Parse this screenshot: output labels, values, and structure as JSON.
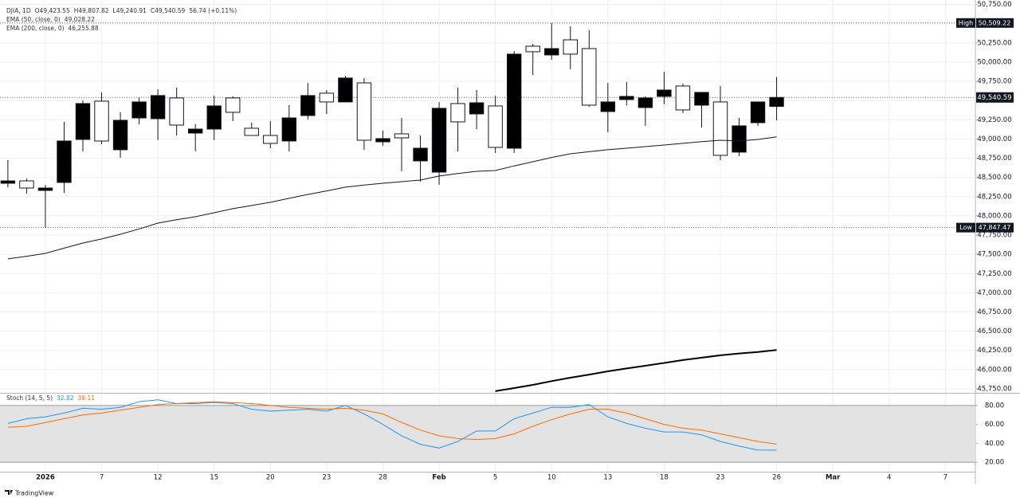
{
  "brand": "TradingView",
  "chart_data": [
    {
      "type": "candlestick",
      "header": {
        "symbol": "DJIA, 1D",
        "ohlc_labels": [
          "O49,423.55",
          "H49,807.82",
          "L49,240.91",
          "C49,540.59"
        ],
        "change": "56.74 (+0.11%)"
      },
      "up_color": "#000000",
      "down_color": "#ffffff",
      "xlim": [
        -0.42,
        51.6
      ],
      "xticks": [
        {
          "value": 2,
          "label": "2026"
        },
        {
          "value": 5,
          "label": "7"
        },
        {
          "value": 8,
          "label": "12"
        },
        {
          "value": 11,
          "label": "15"
        },
        {
          "value": 14,
          "label": "20"
        },
        {
          "value": 17,
          "label": "23"
        },
        {
          "value": 20,
          "label": "28"
        },
        {
          "value": 23,
          "label": "Feb"
        },
        {
          "value": 26,
          "label": "5"
        },
        {
          "value": 29,
          "label": "10"
        },
        {
          "value": 32,
          "label": "13"
        },
        {
          "value": 35,
          "label": "18"
        },
        {
          "value": 38,
          "label": "23"
        },
        {
          "value": 41,
          "label": "26"
        },
        {
          "value": 44,
          "label": "Mar"
        },
        {
          "value": 47,
          "label": "4"
        },
        {
          "value": 50,
          "label": "7"
        }
      ],
      "ylim": [
        45698,
        50808
      ],
      "yticks": [
        {
          "value": 45750,
          "label": "45,750.00"
        },
        {
          "value": 46000,
          "label": "46,000.00"
        },
        {
          "value": 46250,
          "label": "46,250.00"
        },
        {
          "value": 46500,
          "label": "46,500.00"
        },
        {
          "value": 46750,
          "label": "46,750.00"
        },
        {
          "value": 47000,
          "label": "47,000.00"
        },
        {
          "value": 47250,
          "label": "47,250.00"
        },
        {
          "value": 47500,
          "label": "47,500.00"
        },
        {
          "value": 47750,
          "label": "47,750.00"
        },
        {
          "value": 48000,
          "label": "48,000.00"
        },
        {
          "value": 48250,
          "label": "48,250.00"
        },
        {
          "value": 48500,
          "label": "48,500.00"
        },
        {
          "value": 48750,
          "label": "48,750.00"
        },
        {
          "value": 49000,
          "label": "49,000.00"
        },
        {
          "value": 49250,
          "label": "49,250.00"
        },
        {
          "value": 49500,
          "label": "49,500.00"
        },
        {
          "value": 49750,
          "label": "49,750.00"
        },
        {
          "value": 50000,
          "label": "50,000.00"
        },
        {
          "value": 50250,
          "label": "50,250.00"
        },
        {
          "value": 50500,
          "label": "50,500.00"
        },
        {
          "value": 50750,
          "label": "50,750.00"
        }
      ],
      "grid": true,
      "open": [
        48424,
        48455,
        48331,
        48435,
        48994,
        49492,
        48860,
        49274,
        49264,
        49534,
        49077,
        49129,
        49534,
        49140,
        49046,
        48974,
        49305,
        49596,
        49482,
        49730,
        48963,
        49067,
        48715,
        48569,
        49461,
        49326,
        49430,
        48880,
        50207,
        50093,
        50290,
        50176,
        49357,
        49513,
        49409,
        49554,
        49689,
        49440,
        49482,
        48829,
        49212,
        49423.55
      ],
      "high": [
        48725,
        48487,
        48404,
        49223,
        49502,
        49606,
        49347,
        49544,
        49648,
        49668,
        49191,
        49565,
        49554,
        49212,
        49233,
        49440,
        49730,
        49637,
        49824,
        49793,
        49109,
        49274,
        49046,
        49482,
        49668,
        49637,
        49565,
        50145,
        50238,
        50509.22,
        50466,
        50415,
        49730,
        49741,
        49554,
        49876,
        49720,
        49606,
        49689,
        49274,
        49482,
        49807.82
      ],
      "low": [
        48373,
        48290,
        47847.47,
        48300,
        48839,
        48932,
        48756,
        49191,
        48984,
        49046,
        48839,
        48984,
        49233,
        49046,
        48880,
        48839,
        49254,
        49326,
        49482,
        48860,
        48912,
        48580,
        48445,
        48404,
        48839,
        49129,
        48818,
        48818,
        49834,
        50031,
        49907,
        49420,
        49088,
        49440,
        49171,
        49451,
        49337,
        49150,
        48725,
        48777,
        49171,
        49240.91
      ],
      "close": [
        48455,
        48362,
        48362,
        48974,
        49461,
        48974,
        49243,
        49482,
        49565,
        49181,
        49129,
        49430,
        49347,
        49046,
        48943,
        49274,
        49565,
        49482,
        49793,
        48984,
        49005,
        49015,
        48880,
        49399,
        49223,
        49471,
        48891,
        50104,
        50135,
        50176,
        50104,
        49440,
        49482,
        49554,
        49534,
        49637,
        49378,
        49606,
        48787,
        49171,
        49482,
        49540.59
      ],
      "lines": [
        {
          "name": "EMA (50, close, 0)",
          "value_label": "49,028.22",
          "color": "#131722",
          "values": [
            47440,
            47475,
            47512,
            47580,
            47647,
            47700,
            47761,
            47830,
            47906,
            47950,
            47989,
            48040,
            48093,
            48135,
            48176,
            48228,
            48279,
            48325,
            48373,
            48400,
            48424,
            48445,
            48466,
            48518,
            48550,
            48580,
            48590,
            48650,
            48704,
            48760,
            48808,
            48835,
            48860,
            48880,
            48901,
            48922,
            48943,
            48965,
            48984,
            48974,
            48994,
            49028.22
          ]
        },
        {
          "name": "EMA (200, close, 0)",
          "value_label": "46,255.88",
          "color": "#000000",
          "values": [
            null,
            null,
            null,
            null,
            null,
            null,
            null,
            null,
            null,
            null,
            null,
            null,
            null,
            null,
            null,
            null,
            null,
            null,
            null,
            null,
            null,
            null,
            null,
            null,
            null,
            null,
            45720,
            45760,
            45802,
            45850,
            45895,
            45935,
            45978,
            46015,
            46050,
            46087,
            46124,
            46155,
            46186,
            46210,
            46230,
            46255.88
          ]
        }
      ],
      "annotations": [
        {
          "label": "High",
          "value": 50509.22,
          "value_label": "50,509.22"
        },
        {
          "label": "Low",
          "value": 47847.47,
          "value_label": "47,847.47"
        }
      ],
      "last_price": {
        "value": 49540.59,
        "label": "49,540.59"
      }
    },
    {
      "type": "line",
      "title": "Stoch (14, 5, 5)",
      "xlim": [
        -0.42,
        51.6
      ],
      "ylim": [
        10,
        92.5
      ],
      "yticks": [
        {
          "value": 20,
          "label": "20.00"
        },
        {
          "value": 40,
          "label": "40.00"
        },
        {
          "value": 60,
          "label": "60.00"
        },
        {
          "value": 80,
          "label": "80.00"
        }
      ],
      "band": [
        20,
        80
      ],
      "band_color": "#e3e3e3",
      "grid": true,
      "series": [
        {
          "color": "#2196f3",
          "value_label": "32.82",
          "values": [
            61,
            66,
            68,
            72,
            77,
            76,
            78,
            84,
            86,
            82,
            82,
            83,
            82,
            76,
            74,
            75,
            76,
            74,
            80,
            71,
            60,
            48,
            39,
            35,
            42,
            53,
            53,
            66,
            72,
            78,
            78,
            81,
            68,
            61,
            56,
            52,
            52,
            49,
            42,
            37,
            33,
            32.82
          ]
        },
        {
          "color": "#ff6d00",
          "value_label": "39.11",
          "values": [
            57,
            58,
            62,
            66,
            70,
            72,
            75,
            78,
            81,
            82,
            83,
            84,
            83,
            82,
            80,
            78,
            77,
            76,
            77,
            75,
            71,
            62,
            54,
            48,
            45,
            44,
            45,
            50,
            58,
            65,
            71,
            76,
            76,
            72,
            66,
            60,
            56,
            54,
            50,
            46,
            42,
            39.11
          ]
        }
      ]
    }
  ]
}
